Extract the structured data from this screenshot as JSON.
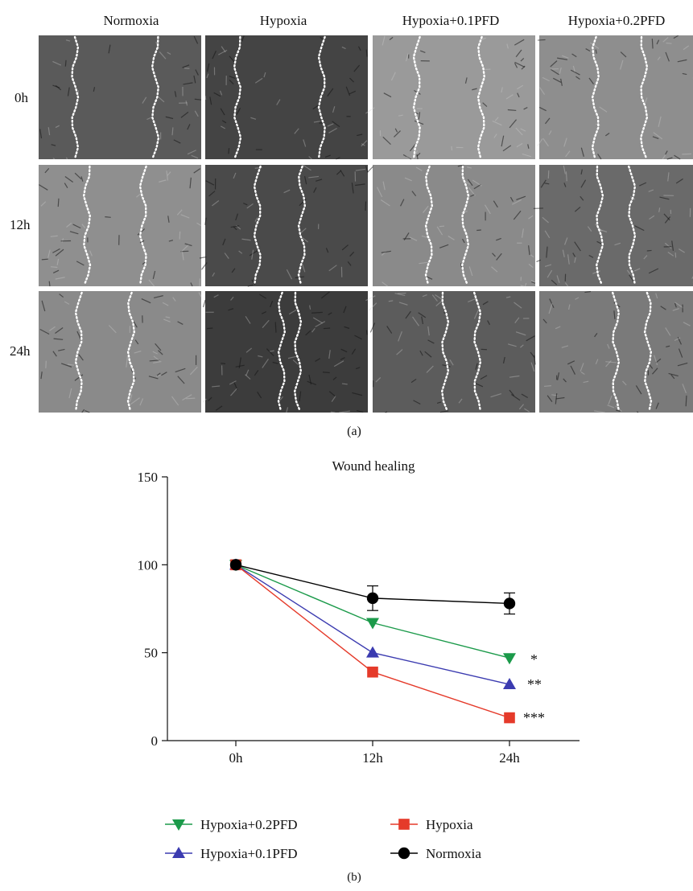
{
  "panel_a": {
    "label": "(a)",
    "columns": [
      "Normoxia",
      "Hypoxia",
      "Hypoxia+0.1PFD",
      "Hypoxia+0.2PFD"
    ],
    "rows": [
      "0h",
      "12h",
      "24h"
    ],
    "tile_tones": [
      [
        "#5a5a5a",
        "#444444",
        "#9a9a9a",
        "#8e8e8e"
      ],
      [
        "#8f8f8f",
        "#4a4a4a",
        "#8a8a8a",
        "#6a6a6a"
      ],
      [
        "#8a8a8a",
        "#3c3c3c",
        "#5c5c5c",
        "#7a7a7a"
      ]
    ]
  },
  "panel_b": {
    "label": "(b)"
  },
  "chart_data": {
    "type": "line",
    "title": "Wound healing",
    "xlabel": "",
    "ylabel": "",
    "categories": [
      "0h",
      "12h",
      "24h"
    ],
    "ylim": [
      0,
      150
    ],
    "yticks": [
      0,
      50,
      100,
      150
    ],
    "grid": false,
    "legend_position": "bottom",
    "series": [
      {
        "name": "Hypoxia+0.2PFD",
        "values": [
          100,
          67,
          47
        ],
        "color": "#1b9a4a",
        "marker": "triangle-down"
      },
      {
        "name": "Hypoxia+0.1PFD",
        "values": [
          100,
          50,
          32
        ],
        "color": "#3b3bb0",
        "marker": "triangle-up"
      },
      {
        "name": "Hypoxia",
        "values": [
          100,
          39,
          13
        ],
        "color": "#e53a2a",
        "marker": "square"
      },
      {
        "name": "Normoxia",
        "values": [
          100,
          81,
          78
        ],
        "color": "#000000",
        "marker": "circle",
        "error": [
          0,
          7,
          6
        ]
      }
    ],
    "annotations": [
      "*",
      "**",
      "***"
    ]
  }
}
